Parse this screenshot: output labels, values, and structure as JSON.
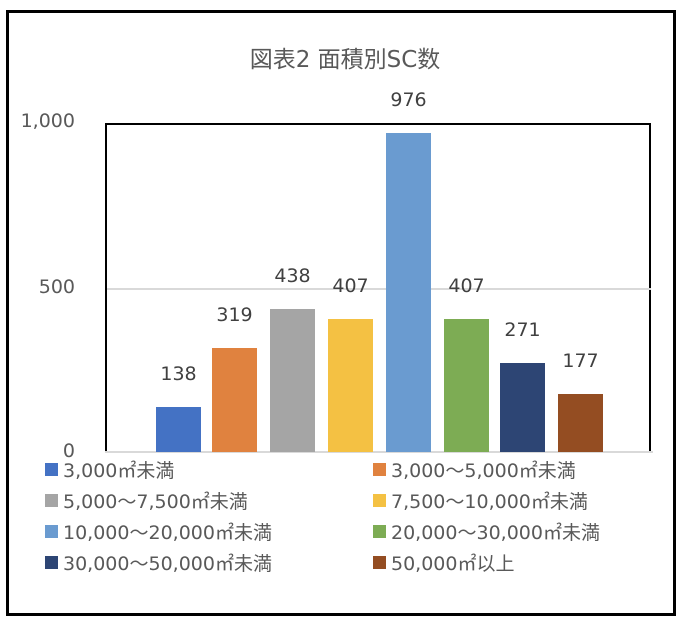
{
  "chart_data": {
    "type": "bar",
    "title": "図表2 面積別SC数",
    "xlabel": "",
    "ylabel": "",
    "ylim": [
      0,
      1000
    ],
    "yticks": [
      "0",
      "500",
      "1,000"
    ],
    "grid": true,
    "legend_position": "bottom",
    "categories": [
      "3,000㎡未満",
      "3,000～5,000㎡未満",
      "5,000～7,500㎡未満",
      "7,500～10,000㎡未満",
      "10,000～20,000㎡未満",
      "20,000～30,000㎡未満",
      "30,000～50,000㎡未満",
      "50,000㎡以上"
    ],
    "values": [
      138,
      319,
      438,
      407,
      976,
      407,
      271,
      177
    ],
    "colors": [
      "#4472C4",
      "#E0823F",
      "#A5A5A5",
      "#F4C143",
      "#6A9BD0",
      "#7DAC54",
      "#2D4574",
      "#944D22"
    ],
    "data_labels": [
      "138",
      "319",
      "438",
      "407",
      "976",
      "407",
      "271",
      "177"
    ]
  },
  "legend": [
    {
      "label": "3,000㎡未満",
      "color": "#4472C4"
    },
    {
      "label": "3,000～5,000㎡未満",
      "color": "#E0823F"
    },
    {
      "label": "5,000～7,500㎡未満",
      "color": "#A5A5A5"
    },
    {
      "label": "7,500～10,000㎡未満",
      "color": "#F4C143"
    },
    {
      "label": "10,000～20,000㎡未満",
      "color": "#6A9BD0"
    },
    {
      "label": "20,000～30,000㎡未満",
      "color": "#7DAC54"
    },
    {
      "label": "30,000～50,000㎡未満",
      "color": "#2D4574"
    },
    {
      "label": "50,000㎡以上",
      "color": "#944D22"
    }
  ]
}
